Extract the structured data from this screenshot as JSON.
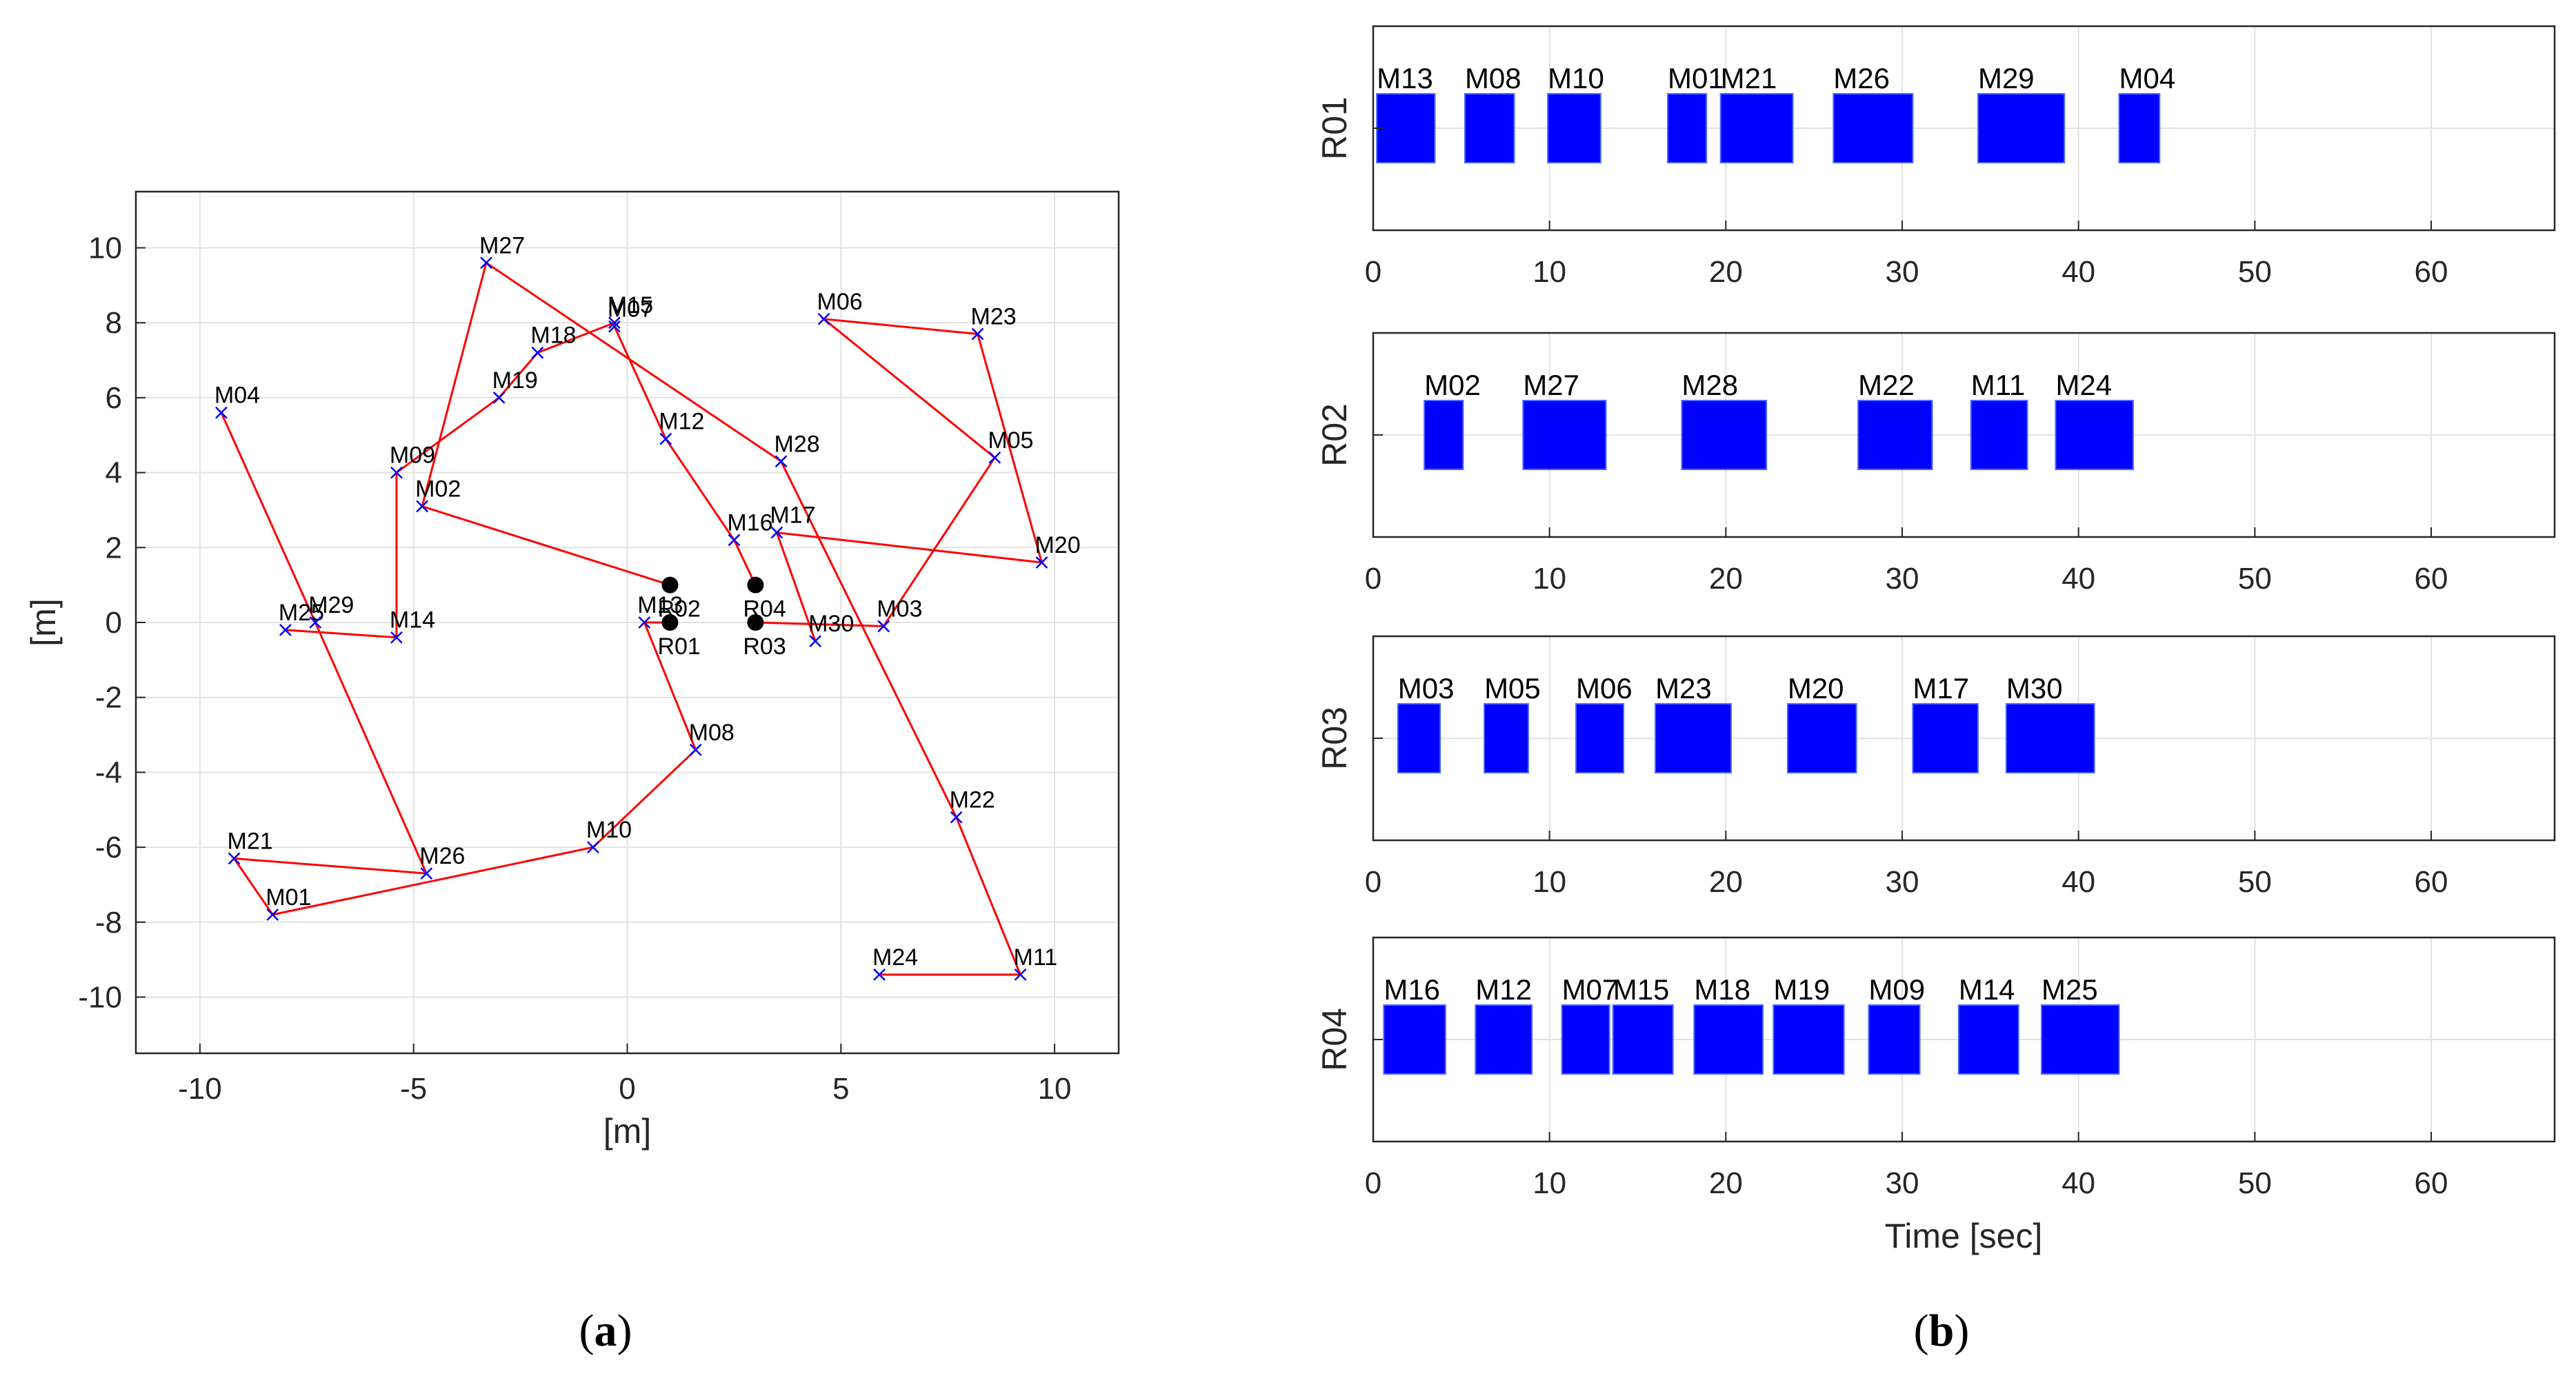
{
  "colors": {
    "route": "#ff0000",
    "marker": "#0000ff",
    "robot": "#000000",
    "task": "#0000ff",
    "task_edge": "#4d6bff",
    "grid": "#e2e2e2",
    "axis": "#262626"
  },
  "chart_data": [
    {
      "type": "scatter",
      "panel_caption": "a",
      "xlabel": "[m]",
      "ylabel": "[m]",
      "xlim": [
        -11.5,
        11.5
      ],
      "ylim": [
        -11.5,
        11.5
      ],
      "xticks": [
        -10,
        -5,
        0,
        5,
        10
      ],
      "yticks": [
        10,
        8,
        6,
        4,
        2,
        0,
        -2,
        -4,
        -6,
        -8,
        -10
      ],
      "grid": true,
      "robots": [
        {
          "name": "R01",
          "x": 1.0,
          "y": 0.0
        },
        {
          "name": "R02",
          "x": 1.0,
          "y": 1.0
        },
        {
          "name": "R03",
          "x": 3.0,
          "y": 0.0
        },
        {
          "name": "R04",
          "x": 3.0,
          "y": 1.0
        }
      ],
      "tasks": [
        {
          "name": "M01",
          "x": -8.3,
          "y": -7.8
        },
        {
          "name": "M02",
          "x": -4.8,
          "y": 3.1
        },
        {
          "name": "M03",
          "x": 6.0,
          "y": -0.1
        },
        {
          "name": "M04",
          "x": -9.5,
          "y": 5.6
        },
        {
          "name": "M05",
          "x": 8.6,
          "y": 4.4
        },
        {
          "name": "M06",
          "x": 4.6,
          "y": 8.1
        },
        {
          "name": "M07",
          "x": -0.3,
          "y": 7.9
        },
        {
          "name": "M08",
          "x": 1.6,
          "y": -3.4
        },
        {
          "name": "M09",
          "x": -5.4,
          "y": 4.0
        },
        {
          "name": "M10",
          "x": -0.8,
          "y": -6.0
        },
        {
          "name": "M11",
          "x": 9.2,
          "y": -9.4
        },
        {
          "name": "M12",
          "x": 0.9,
          "y": 4.9
        },
        {
          "name": "M13",
          "x": 0.4,
          "y": 0.0
        },
        {
          "name": "M14",
          "x": -5.4,
          "y": -0.4
        },
        {
          "name": "M15",
          "x": -0.3,
          "y": 8.0
        },
        {
          "name": "M16",
          "x": 2.5,
          "y": 2.2
        },
        {
          "name": "M17",
          "x": 3.5,
          "y": 2.4
        },
        {
          "name": "M18",
          "x": -2.1,
          "y": 7.2
        },
        {
          "name": "M19",
          "x": -3.0,
          "y": 6.0
        },
        {
          "name": "M20",
          "x": 9.7,
          "y": 1.6
        },
        {
          "name": "M21",
          "x": -9.2,
          "y": -6.3
        },
        {
          "name": "M22",
          "x": 7.7,
          "y": -5.2
        },
        {
          "name": "M23",
          "x": 8.2,
          "y": 7.7
        },
        {
          "name": "M24",
          "x": 5.9,
          "y": -9.4
        },
        {
          "name": "M25",
          "x": -8.0,
          "y": -0.2
        },
        {
          "name": "M26",
          "x": -4.7,
          "y": -6.7
        },
        {
          "name": "M27",
          "x": -3.3,
          "y": 9.6
        },
        {
          "name": "M28",
          "x": 3.6,
          "y": 4.3
        },
        {
          "name": "M29",
          "x": -7.3,
          "y": 0.0
        },
        {
          "name": "M30",
          "x": 4.4,
          "y": -0.5
        }
      ],
      "routes": [
        {
          "robot": "R01",
          "sequence": [
            "R01",
            "M13",
            "M08",
            "M10",
            "M01",
            "M21",
            "M26",
            "M29",
            "M04"
          ]
        },
        {
          "robot": "R02",
          "sequence": [
            "R02",
            "M02",
            "M27",
            "M28",
            "M22",
            "M11",
            "M24"
          ]
        },
        {
          "robot": "R03",
          "sequence": [
            "R03",
            "M03",
            "M05",
            "M06",
            "M23",
            "M20",
            "M17",
            "M30"
          ]
        },
        {
          "robot": "R04",
          "sequence": [
            "R04",
            "M16",
            "M12",
            "M07",
            "M15",
            "M18",
            "M19",
            "M09",
            "M14",
            "M25"
          ]
        }
      ]
    },
    {
      "type": "gantt",
      "panel_caption": "b",
      "xlabel": "Time [sec]",
      "xlim": [
        0,
        67
      ],
      "xticks": [
        0,
        10,
        20,
        30,
        40,
        50,
        60
      ],
      "grid": true,
      "rows": [
        {
          "robot": "R01",
          "tasks": [
            {
              "name": "M13",
              "start": 0.2,
              "end": 3.5
            },
            {
              "name": "M08",
              "start": 5.2,
              "end": 8.0
            },
            {
              "name": "M10",
              "start": 9.9,
              "end": 12.9
            },
            {
              "name": "M01",
              "start": 16.7,
              "end": 18.9
            },
            {
              "name": "M21",
              "start": 19.7,
              "end": 23.8
            },
            {
              "name": "M26",
              "start": 26.1,
              "end": 30.6
            },
            {
              "name": "M29",
              "start": 34.3,
              "end": 39.2
            },
            {
              "name": "M04",
              "start": 42.3,
              "end": 44.6
            }
          ]
        },
        {
          "robot": "R02",
          "tasks": [
            {
              "name": "M02",
              "start": 2.9,
              "end": 5.1
            },
            {
              "name": "M27",
              "start": 8.5,
              "end": 13.2
            },
            {
              "name": "M28",
              "start": 17.5,
              "end": 22.3
            },
            {
              "name": "M22",
              "start": 27.5,
              "end": 31.7
            },
            {
              "name": "M11",
              "start": 33.9,
              "end": 37.1
            },
            {
              "name": "M24",
              "start": 38.7,
              "end": 43.1
            }
          ]
        },
        {
          "robot": "R03",
          "tasks": [
            {
              "name": "M03",
              "start": 1.4,
              "end": 3.8
            },
            {
              "name": "M05",
              "start": 6.3,
              "end": 8.8
            },
            {
              "name": "M06",
              "start": 11.5,
              "end": 14.2
            },
            {
              "name": "M23",
              "start": 16.0,
              "end": 20.3
            },
            {
              "name": "M20",
              "start": 23.5,
              "end": 27.4
            },
            {
              "name": "M17",
              "start": 30.6,
              "end": 34.3
            },
            {
              "name": "M30",
              "start": 35.9,
              "end": 40.9
            }
          ]
        },
        {
          "robot": "R04",
          "tasks": [
            {
              "name": "M16",
              "start": 0.6,
              "end": 4.1
            },
            {
              "name": "M12",
              "start": 5.8,
              "end": 9.0
            },
            {
              "name": "M07",
              "start": 10.7,
              "end": 13.4
            },
            {
              "name": "M15",
              "start": 13.6,
              "end": 17.0
            },
            {
              "name": "M18",
              "start": 18.2,
              "end": 22.1
            },
            {
              "name": "M19",
              "start": 22.7,
              "end": 26.7
            },
            {
              "name": "M09",
              "start": 28.1,
              "end": 31.0
            },
            {
              "name": "M14",
              "start": 33.2,
              "end": 36.6
            },
            {
              "name": "M25",
              "start": 37.9,
              "end": 42.3
            }
          ]
        }
      ]
    }
  ]
}
